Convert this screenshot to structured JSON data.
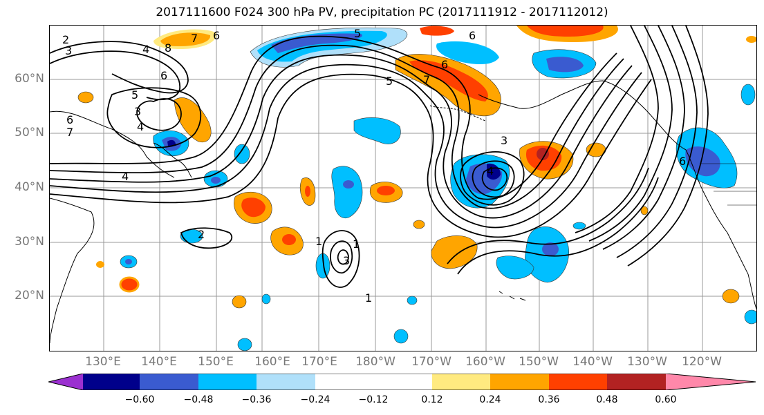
{
  "title": "2017111600 F024 300 hPa PV, precipitation PC (2017111912 - 2017112012)",
  "latitude_labels": [
    "60°N",
    "50°N",
    "40°N",
    "30°N",
    "20°N"
  ],
  "longitude_labels": [
    "130°E",
    "140°E",
    "150°E",
    "160°E",
    "170°E",
    "180°W",
    "170°W",
    "160°W",
    "150°W",
    "140°W",
    "130°W",
    "120°W"
  ],
  "colorbar": {
    "tick_labels": [
      "−0.60",
      "−0.48",
      "−0.36",
      "−0.24",
      "−0.12",
      "0.12",
      "0.24",
      "0.36",
      "0.48",
      "0.60"
    ],
    "colors": [
      "#9b30d0",
      "#00008b",
      "#3a5bd0",
      "#00bfff",
      "#b0e0fa",
      "#ffffff",
      "#ffea80",
      "#ffa500",
      "#ff4000",
      "#b22222",
      "#ff88aa"
    ]
  },
  "contour_labels": [
    "2",
    "3",
    "4",
    "6",
    "7",
    "8",
    "6",
    "5",
    "6",
    "5",
    "3",
    "4",
    "6",
    "7",
    "4",
    "2",
    "3",
    "1",
    "1",
    "1",
    "6",
    "7",
    "5",
    "3",
    "4",
    "6"
  ]
}
